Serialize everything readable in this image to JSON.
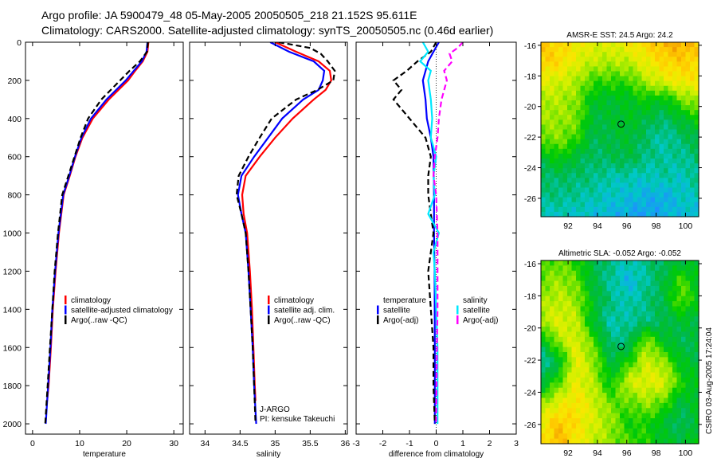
{
  "header": {
    "line1": "Argo profile: JA 5900479_48 05-May-2005 20050505_218 21.152S 95.611E",
    "line2": "Climatology: CARS2000. Satellite-adjusted climatology: synTS_20050505.nc (0.46d earlier)"
  },
  "footer": {
    "stamp": "CSIRO 03-Aug-2005 17:24:04"
  },
  "colors": {
    "climatology": "#ff0000",
    "satellite": "#0000ff",
    "argo": "#000000",
    "sal_satellite": "#00e8ff",
    "sal_argo": "#ff00ff"
  },
  "chart_data": [
    {
      "type": "line",
      "id": "temperature",
      "xlabel": "temperature",
      "xlim": [
        -1.5,
        32
      ],
      "ylim": [
        2054,
        0
      ],
      "xticks": [
        0,
        10,
        20,
        30
      ],
      "yticks": [
        0,
        200,
        400,
        600,
        800,
        1000,
        1200,
        1400,
        1600,
        1800,
        2000
      ],
      "legend": [
        "climatology",
        "satellite-adjusted climatology",
        "Argo(..raw -QC)"
      ],
      "series": [
        {
          "name": "climatology",
          "color": "#ff0000",
          "dash": false,
          "depth": [
            0,
            50,
            100,
            150,
            200,
            300,
            400,
            500,
            600,
            700,
            800,
            1000,
            1200,
            1400,
            1600,
            1800,
            1880
          ],
          "values": [
            24.6,
            24.4,
            23.4,
            21.8,
            20.3,
            16.2,
            12.8,
            10.6,
            9.1,
            7.9,
            6.6,
            5.6,
            4.9,
            4.3,
            3.9,
            3.4,
            3.1
          ]
        },
        {
          "name": "satellite-adjusted climatology",
          "color": "#0000ff",
          "dash": false,
          "depth": [
            0,
            50,
            100,
            150,
            200,
            300,
            400,
            500,
            600,
            700,
            800,
            1000,
            1200,
            1400,
            1600,
            1800,
            2000
          ],
          "values": [
            24.4,
            24.2,
            23.2,
            21.5,
            19.8,
            15.7,
            12.4,
            10.4,
            9.0,
            7.8,
            6.5,
            5.5,
            4.8,
            4.2,
            3.8,
            3.3,
            2.8
          ]
        },
        {
          "name": "Argo(..raw -QC)",
          "color": "#000000",
          "dash": true,
          "depth": [
            0,
            50,
            100,
            150,
            200,
            300,
            400,
            500,
            600,
            700,
            800,
            1000,
            1200,
            1400,
            1600,
            1800,
            2000
          ],
          "values": [
            24.5,
            24.3,
            22.8,
            20.6,
            18.6,
            14.6,
            11.8,
            10.2,
            8.9,
            7.6,
            6.3,
            5.4,
            4.7,
            4.2,
            3.7,
            3.2,
            2.7
          ]
        }
      ]
    },
    {
      "type": "line",
      "id": "salinity",
      "xlabel": "salinity",
      "xlim": [
        33.78,
        36.03
      ],
      "ylim": [
        2054,
        0
      ],
      "xticks": [
        34,
        34.5,
        35,
        35.5,
        36
      ],
      "yticks": [
        0,
        200,
        400,
        600,
        800,
        1000,
        1200,
        1400,
        1600,
        1800,
        2000
      ],
      "legend": [
        "climatology",
        "satellite adj. clim.",
        "Argo(..raw -QC)"
      ],
      "annotations": [
        "J-ARGO",
        "PI: kensuke Takeuchi"
      ],
      "series": [
        {
          "name": "climatology",
          "color": "#ff0000",
          "dash": false,
          "depth": [
            0,
            50,
            100,
            150,
            200,
            250,
            300,
            400,
            500,
            600,
            700,
            800,
            900,
            1000,
            1200,
            1400,
            1600,
            1800,
            1880
          ],
          "values": [
            35.0,
            35.3,
            35.62,
            35.78,
            35.8,
            35.72,
            35.55,
            35.25,
            35.0,
            34.78,
            34.58,
            34.53,
            34.55,
            34.6,
            34.64,
            34.67,
            34.69,
            34.71,
            34.72
          ]
        },
        {
          "name": "satellite adj. clim.",
          "color": "#0000ff",
          "dash": false,
          "depth": [
            0,
            50,
            100,
            150,
            200,
            250,
            300,
            400,
            500,
            600,
            700,
            800,
            900,
            1000,
            1200,
            1400,
            1600,
            1800,
            2000
          ],
          "values": [
            34.93,
            35.2,
            35.55,
            35.7,
            35.68,
            35.62,
            35.4,
            35.1,
            34.9,
            34.7,
            34.52,
            34.47,
            34.52,
            34.58,
            34.62,
            34.65,
            34.68,
            34.7,
            34.73
          ]
        },
        {
          "name": "Argo(..raw -QC)",
          "color": "#000000",
          "dash": true,
          "depth": [
            0,
            30,
            60,
            100,
            150,
            200,
            250,
            300,
            400,
            500,
            600,
            700,
            800,
            900,
            1000,
            1200,
            1400,
            1600,
            1800,
            2000
          ],
          "values": [
            35.05,
            35.5,
            35.65,
            35.75,
            35.85,
            35.83,
            35.6,
            35.3,
            34.95,
            34.78,
            34.62,
            34.48,
            34.45,
            34.52,
            34.58,
            34.62,
            34.65,
            34.68,
            34.7,
            34.72
          ]
        }
      ]
    },
    {
      "type": "line",
      "id": "difference",
      "xlabel": "difference from climatology",
      "xlim": [
        -3,
        3
      ],
      "ylim": [
        2054,
        0
      ],
      "xticks": [
        -3,
        -2,
        -1,
        0,
        1,
        2,
        3
      ],
      "yticks": [
        0,
        200,
        400,
        600,
        800,
        1000,
        1200,
        1400,
        1600,
        1800,
        2000
      ],
      "legend_left": [
        "temperature",
        "satellite",
        "Argo(-adj)"
      ],
      "legend_right": [
        "salinity",
        "satellite",
        "Argo(-adj)"
      ],
      "series": [
        {
          "name": "temperature satellite",
          "color": "#0000ff",
          "dash": false,
          "depth": [
            0,
            50,
            100,
            200,
            300,
            400,
            500,
            600,
            800,
            1000,
            1200,
            1600,
            2000
          ],
          "values": [
            0.1,
            -0.1,
            -0.3,
            -0.5,
            -0.4,
            -0.35,
            -0.2,
            -0.1,
            -0.08,
            -0.08,
            -0.06,
            -0.05,
            -0.05
          ]
        },
        {
          "name": "temperature Argo(-adj)",
          "color": "#000000",
          "dash": true,
          "depth": [
            0,
            50,
            100,
            150,
            200,
            250,
            300,
            400,
            500,
            600,
            700,
            800,
            900,
            1000,
            1200,
            1400,
            1600,
            1800,
            2000
          ],
          "values": [
            0.0,
            -0.2,
            -0.7,
            -1.1,
            -1.6,
            -1.3,
            -1.6,
            -1.0,
            -0.4,
            -0.2,
            -0.3,
            -0.3,
            -0.2,
            -0.1,
            -0.3,
            -0.2,
            -0.1,
            -0.1,
            -0.05
          ]
        },
        {
          "name": "salinity satellite",
          "color": "#00e8ff",
          "dash": false,
          "depth": [
            0,
            50,
            100,
            150,
            200,
            300,
            400,
            500,
            600,
            700,
            800,
            900,
            1000,
            1100,
            1200,
            1400,
            1600,
            2000
          ],
          "values": [
            -0.5,
            -0.3,
            -0.6,
            -0.2,
            -0.3,
            -0.2,
            -0.15,
            -0.2,
            0.0,
            -0.1,
            -0.05,
            -0.3,
            0.1,
            -0.1,
            -0.05,
            0.0,
            0.05,
            0.05
          ]
        },
        {
          "name": "salinity Argo(-adj)",
          "color": "#ff00ff",
          "dash": true,
          "depth": [
            0,
            30,
            60,
            100,
            150,
            200,
            300,
            400,
            500,
            600,
            700,
            800,
            1000,
            1200,
            1400,
            1600,
            2000
          ],
          "values": [
            1.0,
            0.8,
            0.5,
            0.6,
            0.3,
            0.4,
            0.2,
            0.1,
            0.05,
            -0.05,
            -0.1,
            0.0,
            0.05,
            0.05,
            0.05,
            0.03,
            0.0
          ]
        }
      ]
    },
    {
      "type": "heatmap",
      "id": "sst",
      "title": "AMSR-E SST: 24.5 Argo: 24.2",
      "xlim": [
        90.15,
        100.9
      ],
      "ylim": [
        -27.2,
        -15.8
      ],
      "xticks": [
        92,
        94,
        96,
        98,
        100
      ],
      "yticks": [
        -16,
        -18,
        -20,
        -22,
        -24,
        -26
      ],
      "marker": {
        "lon": 95.611,
        "lat": -21.152
      },
      "vrange": [
        22.3,
        25.7
      ],
      "grid": [
        [
          25.3,
          25.2,
          25.0,
          24.8,
          24.8,
          25.0,
          25.2,
          25.5,
          25.6,
          25.3
        ],
        [
          25.3,
          25.2,
          24.8,
          24.6,
          24.5,
          24.6,
          24.9,
          25.2,
          25.3,
          25.2
        ],
        [
          24.8,
          24.7,
          24.5,
          24.0,
          24.0,
          24.0,
          24.5,
          24.8,
          25.0,
          25.0
        ],
        [
          24.5,
          24.5,
          24.3,
          23.6,
          23.5,
          23.6,
          23.8,
          23.6,
          24.2,
          24.5
        ],
        [
          24.4,
          24.4,
          24.3,
          23.4,
          23.5,
          23.6,
          23.4,
          23.2,
          23.5,
          23.8
        ],
        [
          24.2,
          24.3,
          24.0,
          23.3,
          23.4,
          23.5,
          23.2,
          22.9,
          23.2,
          23.4
        ],
        [
          23.4,
          23.8,
          23.4,
          23.2,
          23.3,
          23.4,
          23.1,
          23.0,
          23.0,
          23.2
        ],
        [
          23.2,
          23.2,
          23.2,
          23.1,
          22.9,
          22.9,
          22.8,
          23.0,
          22.8,
          23.1
        ],
        [
          23.1,
          23.1,
          23.0,
          22.9,
          22.8,
          22.7,
          22.6,
          22.5,
          22.8,
          22.9
        ],
        [
          22.8,
          22.8,
          22.8,
          22.7,
          22.6,
          22.5,
          22.4,
          22.6,
          22.7,
          22.6
        ]
      ]
    },
    {
      "type": "heatmap",
      "id": "sla",
      "title": "Altimetric SLA: -0.052 Argo: -0.052",
      "xlim": [
        90.15,
        100.9
      ],
      "ylim": [
        -27.2,
        -15.8
      ],
      "xticks": [
        92,
        94,
        96,
        98,
        100
      ],
      "yticks": [
        -16,
        -18,
        -20,
        -22,
        -24,
        -26
      ],
      "marker": {
        "lon": 95.611,
        "lat": -21.152
      },
      "vrange": [
        -0.16,
        0.18
      ],
      "grid": [
        [
          0.0,
          0.03,
          0.0,
          -0.05,
          -0.08,
          -0.1,
          -0.08,
          -0.06,
          -0.05,
          -0.04
        ],
        [
          0.03,
          0.05,
          0.03,
          -0.05,
          -0.09,
          -0.13,
          -0.09,
          -0.05,
          0.02,
          -0.03
        ],
        [
          0.05,
          0.07,
          0.05,
          -0.03,
          -0.08,
          -0.1,
          -0.08,
          -0.05,
          0.03,
          -0.03
        ],
        [
          0.06,
          0.09,
          0.07,
          -0.04,
          -0.1,
          -0.09,
          -0.08,
          -0.06,
          -0.04,
          -0.05
        ],
        [
          -0.05,
          0.05,
          0.09,
          0.02,
          -0.08,
          -0.07,
          0.05,
          -0.03,
          -0.06,
          -0.05
        ],
        [
          -0.1,
          -0.05,
          0.1,
          0.05,
          -0.05,
          0.0,
          0.08,
          0.05,
          -0.03,
          -0.05
        ],
        [
          -0.06,
          0.02,
          0.1,
          0.06,
          -0.02,
          0.08,
          0.09,
          0.09,
          0.0,
          -0.03
        ],
        [
          0.05,
          0.09,
          0.12,
          0.08,
          0.03,
          0.02,
          0.05,
          0.02,
          -0.05,
          -0.03
        ],
        [
          0.1,
          0.15,
          0.12,
          0.08,
          0.05,
          -0.01,
          0.0,
          -0.04,
          -0.07,
          -0.03
        ],
        [
          0.11,
          0.16,
          0.11,
          0.07,
          0.04,
          0.02,
          0.0,
          -0.03,
          -0.04,
          -0.02
        ]
      ]
    }
  ]
}
